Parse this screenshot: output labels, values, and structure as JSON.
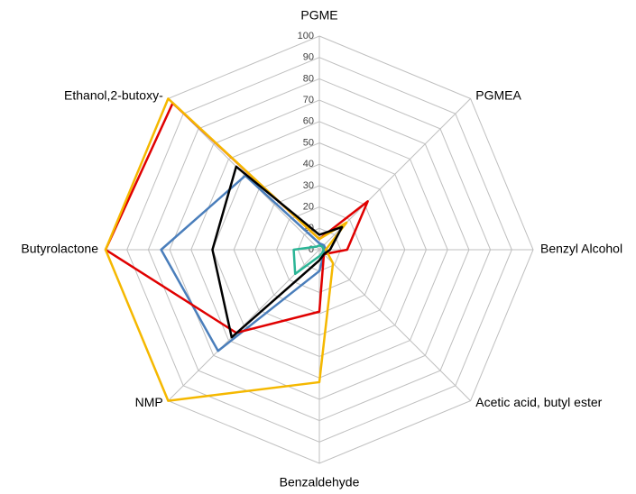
{
  "chart_data": {
    "type": "radar",
    "categories": [
      "PGME",
      "PGMEA",
      "Benzyl Alcohol",
      "Acetic acid, butyl ester",
      "Benzaldehyde",
      "NMP",
      "Butyrolactone",
      "Ethanol,2-butoxy-"
    ],
    "ylim": [
      0,
      100
    ],
    "yticks": [
      0,
      10,
      20,
      30,
      40,
      50,
      60,
      70,
      80,
      90,
      100
    ],
    "grid": true,
    "series": [
      {
        "color": "#4a7ebb",
        "values": [
          3,
          3,
          3,
          3,
          10,
          67,
          74,
          49
        ]
      },
      {
        "color": "#e00000",
        "values": [
          5,
          32,
          13,
          3,
          29,
          55,
          100,
          97
        ]
      },
      {
        "color": "#f5b800",
        "values": [
          5,
          18,
          3,
          9,
          62,
          100,
          100,
          100
        ]
      },
      {
        "color": "#000000",
        "values": [
          7,
          15,
          5,
          3,
          5,
          58,
          50,
          55
        ]
      },
      {
        "color": "#2bb596",
        "values": [
          2,
          2,
          2,
          2,
          3,
          16,
          12,
          2
        ]
      }
    ]
  }
}
